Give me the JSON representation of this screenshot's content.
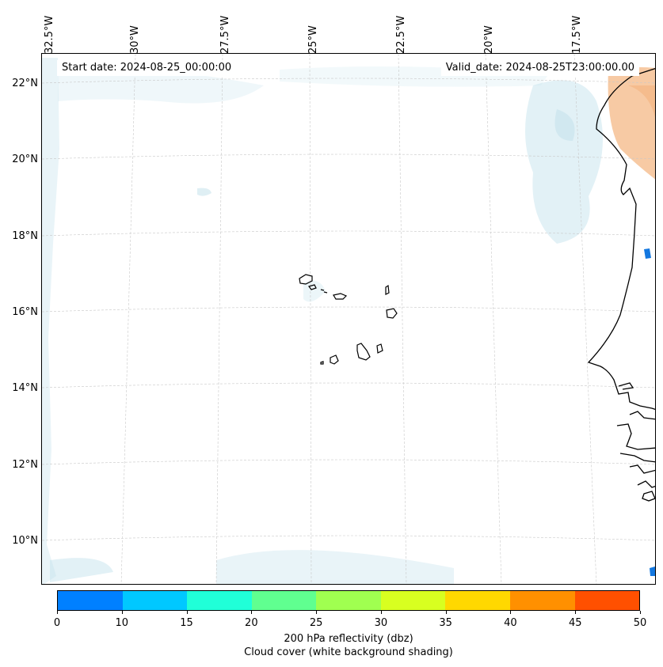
{
  "header": {
    "start_date": "Start date: 2024-08-25_00:00:00",
    "valid_date": "Valid_date: 2024-08-25T23:00:00.00"
  },
  "axes": {
    "lon_labels": [
      "32.5°W",
      "30°W",
      "27.5°W",
      "25°W",
      "22.5°W",
      "20°W",
      "17.5°W"
    ],
    "lat_labels": [
      "22°N",
      "20°N",
      "18°N",
      "16°N",
      "14°N",
      "12°N",
      "10°N"
    ]
  },
  "colorbar": {
    "colors": [
      "#0080ff",
      "#00c8ff",
      "#20ffd8",
      "#60ff90",
      "#a0ff50",
      "#d8ff20",
      "#ffd800",
      "#ff9000",
      "#ff5000"
    ],
    "ticks": [
      "0",
      "10",
      "15",
      "20",
      "25",
      "30",
      "35",
      "40",
      "45",
      "50"
    ],
    "label": "200 hPa reflectivity (dbz)",
    "sublabel": "Cloud cover (white background shading)"
  },
  "colors": {
    "cloud": "#bfe0ea",
    "warm": "#f4b37e",
    "echo": "#1478e0"
  }
}
